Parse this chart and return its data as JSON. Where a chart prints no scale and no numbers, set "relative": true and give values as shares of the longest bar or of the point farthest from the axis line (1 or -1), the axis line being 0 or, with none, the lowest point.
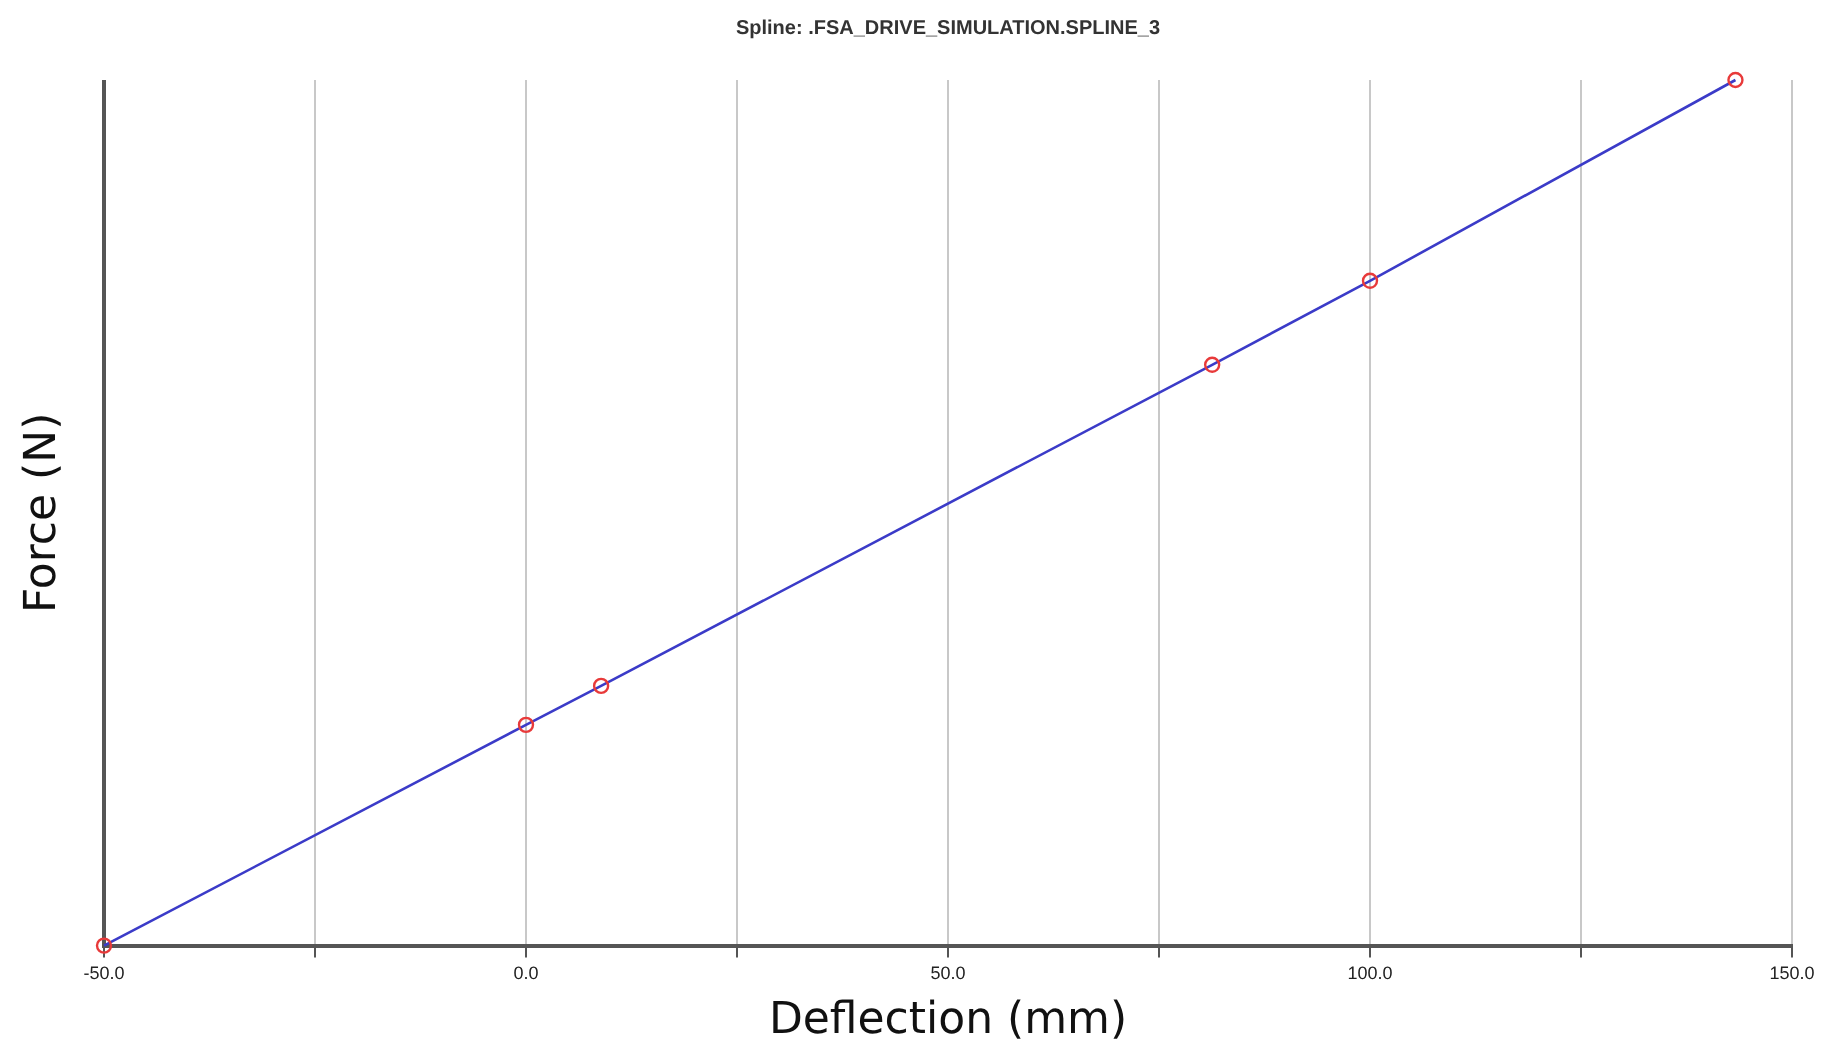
{
  "chart_data": {
    "type": "line",
    "title": "Spline: .FSA_DRIVE_SIMULATION.SPLINE_3",
    "xlabel": "Deflection (mm)",
    "ylabel": "Force (N)",
    "relative": true,
    "xlim": [
      -50,
      150
    ],
    "xticks": [
      {
        "value": -50,
        "label": "-50.0"
      },
      {
        "value": -25,
        "label": null
      },
      {
        "value": 0,
        "label": "0.0"
      },
      {
        "value": 25,
        "label": null
      },
      {
        "value": 50,
        "label": "50.0"
      },
      {
        "value": 75,
        "label": null
      },
      {
        "value": 100,
        "label": "100.0"
      },
      {
        "value": 125,
        "label": null
      },
      {
        "value": 150,
        "label": "150.0"
      }
    ],
    "grid": "x",
    "legend": false,
    "series": [
      {
        "type": "line",
        "color": "#3b3bc8",
        "marker": "none",
        "x": [
          -50,
          0,
          8.9,
          81.3,
          100,
          143.3
        ],
        "values": [
          0,
          0.255,
          0.3,
          0.671,
          0.768,
          1
        ]
      },
      {
        "type": "scatter",
        "color": "#e83a3a",
        "marker": "circle",
        "x": [
          -50,
          0,
          8.9,
          81.3,
          100,
          143.3
        ],
        "values": [
          0,
          0.255,
          0.3,
          0.671,
          0.768,
          1
        ]
      }
    ]
  }
}
